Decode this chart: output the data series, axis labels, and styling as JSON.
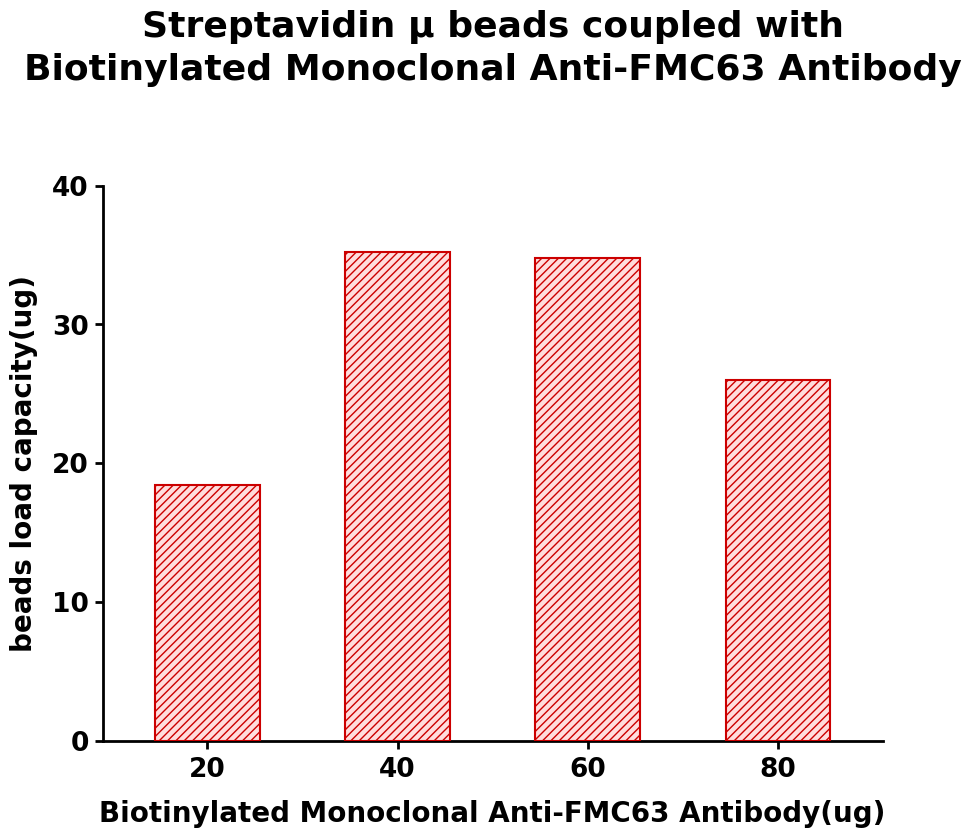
{
  "title_line1": "Streptavidin μ beads coupled with",
  "title_line2": "Biotinylated Monoclonal Anti-FMC63 Antibody",
  "xlabel": "Biotinylated Monoclonal Anti-FMC63 Antibody(ug)",
  "ylabel": "beads load capacity(ug)",
  "categories": [
    "20",
    "40",
    "60",
    "80"
  ],
  "values": [
    18.4,
    35.2,
    34.8,
    26.0
  ],
  "ylim": [
    0,
    40
  ],
  "yticks": [
    0,
    10,
    20,
    30,
    40
  ],
  "bar_edge_color": "#CC0000",
  "bar_face_color": "#ffdddd",
  "background_color": "#ffffff",
  "title_fontsize": 26,
  "axis_label_fontsize": 20,
  "tick_fontsize": 19,
  "bar_width": 0.55
}
